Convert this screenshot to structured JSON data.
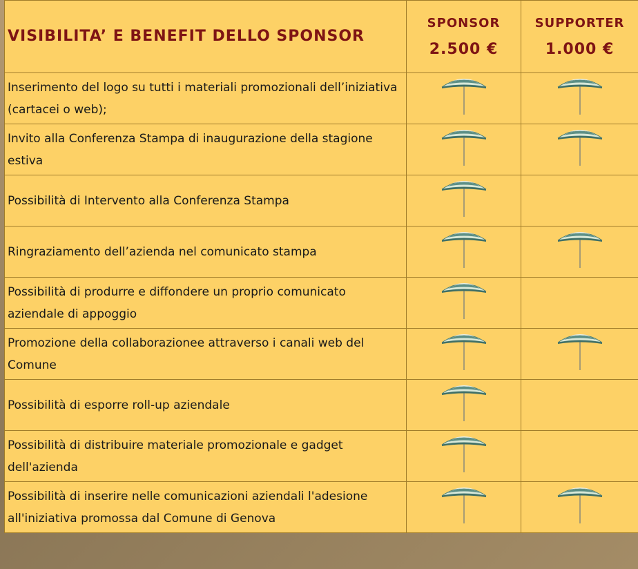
{
  "header": {
    "title": "VISIBILITA’ E BENEFIT DELLO SPONSOR",
    "levels": [
      {
        "name": "SPONSOR",
        "price": "2.500 €"
      },
      {
        "name": "SUPPORTER",
        "price": "1.000 €"
      }
    ]
  },
  "rows": [
    {
      "text": "Inserimento del logo su tutti i materiali promozionali dell’iniziativa (cartacei o web);",
      "included": [
        true,
        true
      ]
    },
    {
      "text": "Invito alla Conferenza Stampa di inaugurazione della stagione estiva",
      "included": [
        true,
        true
      ]
    },
    {
      "text": "Possibilità di Intervento alla Conferenza Stampa",
      "included": [
        true,
        false
      ]
    },
    {
      "text": "Ringraziamento dell’azienda nel comunicato stampa",
      "included": [
        true,
        true
      ]
    },
    {
      "text": "Possibilità di produrre e diffondere un proprio comunicato aziendale di appoggio",
      "included": [
        true,
        false
      ]
    },
    {
      "text": "Promozione della collaborazionee attraverso i canali web del Comune",
      "included": [
        true,
        true
      ]
    },
    {
      "text": "Possibilità di esporre roll-up aziendale",
      "included": [
        true,
        false
      ]
    },
    {
      "text": "Possibilità di distribuire materiale promozionale e gadget dell'azienda",
      "included": [
        true,
        false
      ]
    },
    {
      "text": "Possibilità di inserire nelle comunicazioni aziendali l'adesione all'iniziativa promossa dal Comune di Genova",
      "included": [
        true,
        true
      ]
    }
  ]
}
